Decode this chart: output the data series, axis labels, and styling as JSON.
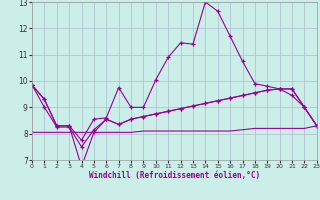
{
  "xlabel": "Windchill (Refroidissement éolien,°C)",
  "background_color": "#cceee8",
  "line_color": "#990099",
  "grid_color": "#aabbcc",
  "xlim": [
    0,
    23
  ],
  "ylim": [
    7,
    13
  ],
  "yticks": [
    7,
    8,
    9,
    10,
    11,
    12,
    13
  ],
  "xticks": [
    0,
    1,
    2,
    3,
    4,
    5,
    6,
    7,
    8,
    9,
    10,
    11,
    12,
    13,
    14,
    15,
    16,
    17,
    18,
    19,
    20,
    21,
    22,
    23
  ],
  "line1_x": [
    0,
    1,
    2,
    3,
    4,
    5,
    6,
    7,
    8,
    9,
    10,
    11,
    12,
    13,
    14,
    15,
    16,
    17,
    18,
    19,
    20,
    21,
    22,
    23
  ],
  "line1_y": [
    9.85,
    9.3,
    8.3,
    8.3,
    7.75,
    8.55,
    8.6,
    9.75,
    9.0,
    9.0,
    10.05,
    10.9,
    11.45,
    11.4,
    13.0,
    12.65,
    11.7,
    10.75,
    9.9,
    9.8,
    9.7,
    9.45,
    9.0,
    8.3
  ],
  "line2_x": [
    0,
    1,
    2,
    3,
    4,
    5,
    6,
    7,
    8,
    9,
    10,
    11,
    12,
    13,
    14,
    15,
    16,
    17,
    18,
    19,
    20,
    21,
    22,
    23
  ],
  "line2_y": [
    9.85,
    9.3,
    8.3,
    8.3,
    6.75,
    8.05,
    8.55,
    8.35,
    8.55,
    8.65,
    8.75,
    8.85,
    8.95,
    9.05,
    9.15,
    9.25,
    9.35,
    9.45,
    9.55,
    9.65,
    9.7,
    9.7,
    9.0,
    8.3
  ],
  "line3_x": [
    0,
    1,
    2,
    3,
    4,
    5,
    6,
    7,
    8,
    9,
    10,
    11,
    12,
    13,
    14,
    15,
    16,
    17,
    18,
    19,
    20,
    21,
    22,
    23
  ],
  "line3_y": [
    9.85,
    9.0,
    8.25,
    8.25,
    7.5,
    8.15,
    8.55,
    8.35,
    8.55,
    8.65,
    8.75,
    8.85,
    8.95,
    9.05,
    9.15,
    9.25,
    9.35,
    9.45,
    9.55,
    9.65,
    9.7,
    9.7,
    9.0,
    8.3
  ],
  "line4_x": [
    0,
    1,
    2,
    3,
    4,
    5,
    6,
    7,
    8,
    9,
    10,
    11,
    12,
    13,
    14,
    15,
    16,
    17,
    18,
    19,
    20,
    21,
    22,
    23
  ],
  "line4_y": [
    8.05,
    8.05,
    8.05,
    8.05,
    8.05,
    8.05,
    8.05,
    8.05,
    8.05,
    8.1,
    8.1,
    8.1,
    8.1,
    8.1,
    8.1,
    8.1,
    8.1,
    8.15,
    8.2,
    8.2,
    8.2,
    8.2,
    8.2,
    8.3
  ]
}
